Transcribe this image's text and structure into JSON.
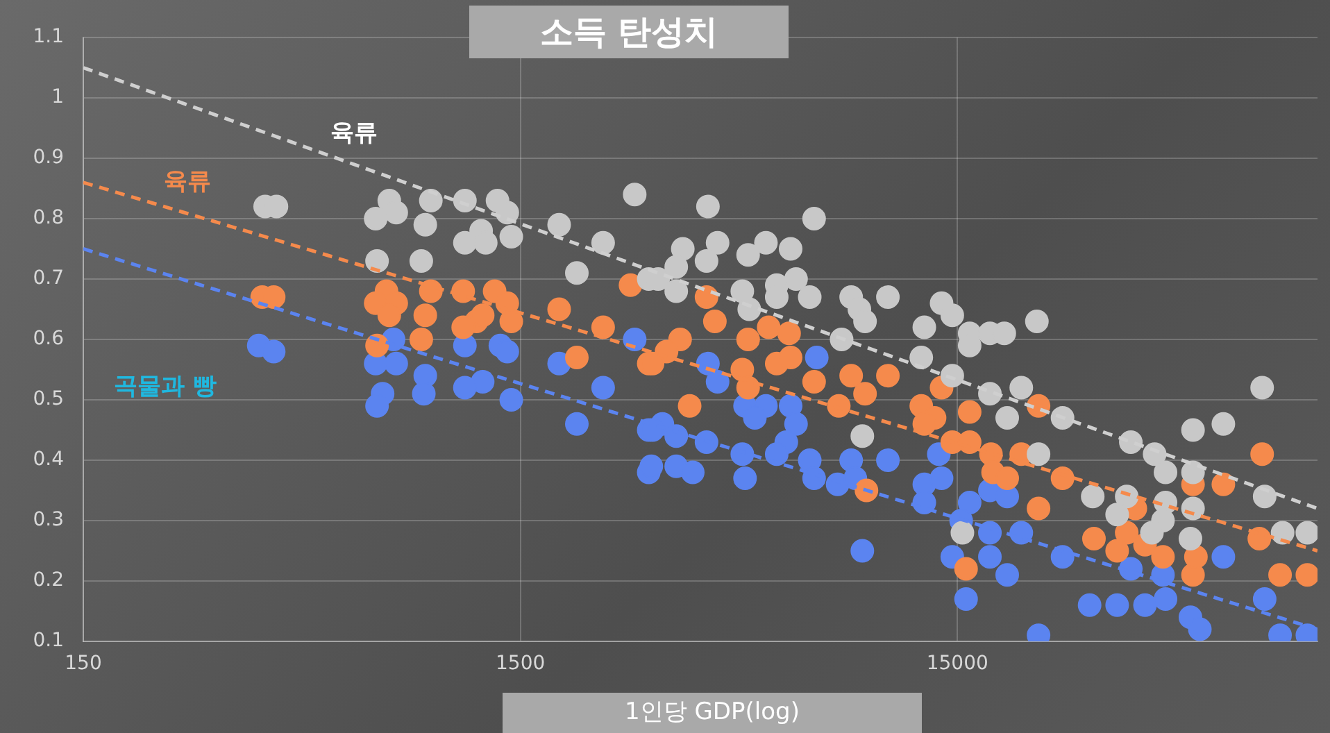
{
  "chart_data": {
    "type": "scatter",
    "title": "소득 탄성치",
    "xlabel": "1인당 GDP(log)",
    "log": "x",
    "grid": true,
    "marker": "circle",
    "xlim": [
      150,
      100000
    ],
    "xticks": [
      150,
      1500,
      15000
    ],
    "ylim": [
      0.1,
      1.1
    ],
    "yticks": [
      0.1,
      0.2,
      0.3,
      0.4,
      0.5,
      0.6,
      0.7,
      0.8,
      0.9,
      1,
      1.1
    ],
    "series": [
      {
        "name": "육류",
        "color": "#c8c8c8",
        "x": [
          391,
          415,
          752,
          700,
          780,
          936,
          909,
          1120,
          1330,
          1400,
          1220,
          1120,
          1250,
          1430,
          890,
          705,
          1840,
          2320,
          2020,
          2740,
          2950,
          4030,
          7050,
          3530,
          4240,
          4000,
          5470,
          6230,
          4980,
          3410,
          3100,
          3410,
          4830,
          5790,
          6410,
          5790,
          6890,
          5010,
          8570,
          10400,
          8950,
          9220,
          8150,
          12600,
          13800,
          14600,
          16000,
          17800,
          19200,
          16000,
          22800,
          12400,
          14600,
          17800,
          21000,
          19500,
          26100,
          23000,
          9090,
          74700,
          51900,
          60900,
          37400,
          42400,
          30600,
          36600,
          44900,
          51900,
          44900,
          51900,
          34800,
          44300,
          51200,
          75700,
          83200,
          94800,
          15400,
          41800
        ],
        "values": [
          0.82,
          0.82,
          0.83,
          0.8,
          0.81,
          0.83,
          0.79,
          0.83,
          0.83,
          0.81,
          0.78,
          0.76,
          0.76,
          0.77,
          0.73,
          0.73,
          0.79,
          0.76,
          0.71,
          0.84,
          0.7,
          0.82,
          0.8,
          0.75,
          0.76,
          0.73,
          0.76,
          0.75,
          0.74,
          0.72,
          0.7,
          0.68,
          0.68,
          0.69,
          0.7,
          0.67,
          0.67,
          0.65,
          0.67,
          0.67,
          0.65,
          0.63,
          0.6,
          0.62,
          0.66,
          0.64,
          0.61,
          0.61,
          0.61,
          0.59,
          0.63,
          0.57,
          0.54,
          0.51,
          0.52,
          0.47,
          0.47,
          0.41,
          0.44,
          0.52,
          0.45,
          0.46,
          0.43,
          0.41,
          0.34,
          0.34,
          0.38,
          0.38,
          0.33,
          0.32,
          0.31,
          0.3,
          0.27,
          0.34,
          0.28,
          0.28,
          0.28,
          0.28
        ]
      },
      {
        "name": "육류",
        "color": "#f58a4c",
        "x": [
          385,
          409,
          741,
          700,
          780,
          752,
          936,
          1110,
          1310,
          1400,
          909,
          1190,
          1110,
          1230,
          1430,
          890,
          705,
          1840,
          2320,
          2020,
          2680,
          2950,
          4000,
          4180,
          3480,
          3240,
          3010,
          4980,
          5550,
          6180,
          4830,
          4980,
          5790,
          6230,
          7050,
          8570,
          9220,
          10400,
          8030,
          3660,
          12400,
          13800,
          13300,
          16000,
          12600,
          14600,
          16000,
          17900,
          21000,
          18100,
          19500,
          23000,
          26100,
          23000,
          15700,
          9290,
          30800,
          36600,
          34800,
          40300,
          43300,
          44300,
          38300,
          51900,
          60900,
          51900,
          52700,
          74700,
          73600,
          82100,
          94800
        ],
        "values": [
          0.67,
          0.67,
          0.68,
          0.66,
          0.66,
          0.64,
          0.68,
          0.68,
          0.68,
          0.66,
          0.64,
          0.63,
          0.62,
          0.64,
          0.63,
          0.6,
          0.59,
          0.65,
          0.62,
          0.57,
          0.69,
          0.56,
          0.67,
          0.63,
          0.6,
          0.58,
          0.56,
          0.6,
          0.62,
          0.61,
          0.55,
          0.52,
          0.56,
          0.57,
          0.53,
          0.54,
          0.51,
          0.54,
          0.49,
          0.49,
          0.49,
          0.52,
          0.47,
          0.48,
          0.46,
          0.43,
          0.43,
          0.41,
          0.41,
          0.38,
          0.37,
          0.49,
          0.37,
          0.32,
          0.22,
          0.35,
          0.27,
          0.28,
          0.25,
          0.26,
          null,
          0.24,
          0.32,
          0.36,
          0.36,
          0.21,
          0.24,
          0.41,
          0.27,
          0.21,
          0.21
        ]
      },
      {
        "name": "곡물과 빵",
        "color": "#5b84f0",
        "x": [
          378,
          409,
          700,
          780,
          726,
          705,
          909,
          902,
          1120,
          1350,
          1400,
          1230,
          1120,
          1430,
          769,
          1840,
          2320,
          2020,
          2740,
          2950,
          2950,
          7150,
          4030,
          3170,
          3410,
          3010,
          2990,
          3410,
          3720,
          4000,
          4240,
          4900,
          5470,
          5160,
          6230,
          6410,
          6090,
          5790,
          4900,
          4830,
          6890,
          7050,
          7980,
          8570,
          8760,
          10400,
          9090,
          13600,
          12600,
          13800,
          12600,
          16000,
          17800,
          19500,
          15300,
          17800,
          21000,
          14600,
          17800,
          19500,
          15700,
          26100,
          23000,
          37400,
          44300,
          30100,
          34800,
          40300,
          44900,
          51200,
          53800,
          60900,
          75700,
          82100,
          94800
        ],
        "values": [
          0.59,
          0.58,
          0.56,
          0.56,
          0.51,
          0.49,
          0.54,
          0.51,
          0.59,
          0.59,
          0.58,
          0.53,
          0.52,
          0.5,
          0.6,
          0.56,
          0.52,
          0.46,
          0.6,
          0.45,
          0.38,
          0.57,
          0.56,
          0.46,
          0.44,
          0.45,
          0.39,
          0.39,
          0.38,
          0.43,
          0.53,
          0.49,
          0.49,
          0.47,
          0.49,
          0.46,
          0.43,
          0.41,
          0.37,
          0.41,
          0.4,
          0.37,
          0.36,
          0.4,
          0.37,
          0.4,
          0.25,
          0.41,
          0.36,
          0.37,
          0.33,
          0.33,
          0.35,
          0.34,
          0.3,
          0.28,
          0.28,
          0.24,
          0.24,
          0.21,
          0.17,
          0.24,
          0.11,
          0.22,
          0.21,
          0.16,
          0.16,
          0.16,
          0.17,
          0.14,
          0.12,
          0.24,
          0.17,
          0.11,
          0.11
        ]
      },
      {
        "type": "line",
        "color": "#cfcfcf",
        "line_style": "dashed",
        "marker": "none",
        "x": [
          150,
          100000
        ],
        "values": [
          1.05,
          0.32
        ]
      },
      {
        "type": "line",
        "color": "#f58a4c",
        "line_style": "dashed",
        "marker": "none",
        "x": [
          150,
          100000
        ],
        "values": [
          0.86,
          0.25
        ]
      },
      {
        "type": "line",
        "color": "#5b84f0",
        "line_style": "dashed",
        "marker": "none",
        "x": [
          150,
          100000
        ],
        "values": [
          0.75,
          0.12
        ]
      }
    ]
  }
}
